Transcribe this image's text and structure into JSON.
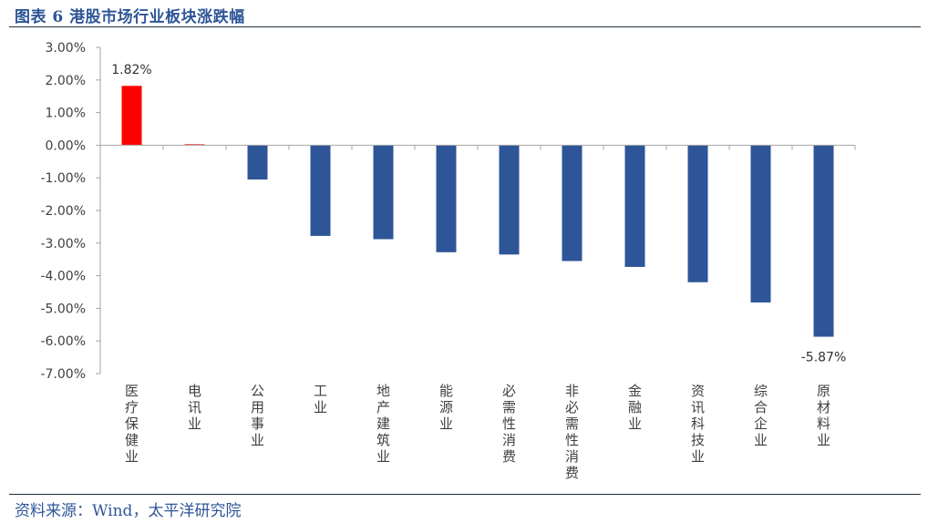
{
  "header": {
    "figure_title": "图表 6  港股市场行业板块涨跌幅"
  },
  "footer": {
    "source": "资料来源：Wind，太平洋研究院"
  },
  "chart_data": {
    "type": "bar",
    "categories": [
      "医疗保健业",
      "电讯业",
      "公用事业",
      "工业",
      "地产建筑业",
      "能源业",
      "必需性消费",
      "非必需性消费",
      "金融业",
      "资讯科技业",
      "综合企业",
      "原材料业"
    ],
    "values": [
      1.82,
      0.03,
      -1.05,
      -2.78,
      -2.88,
      -3.28,
      -3.35,
      -3.55,
      -3.73,
      -4.2,
      -4.82,
      -5.87
    ],
    "data_labels": [
      {
        "index": 0,
        "text": "1.82%"
      },
      {
        "index": 11,
        "text": "-5.87%"
      }
    ],
    "ylim": [
      -7,
      3
    ],
    "y_ticks": [
      3,
      2,
      1,
      0,
      -1,
      -2,
      -3,
      -4,
      -5,
      -6,
      -7
    ],
    "y_tick_labels": [
      "3.00%",
      "2.00%",
      "1.00%",
      "0.00%",
      "-1.00%",
      "-2.00%",
      "-3.00%",
      "-4.00%",
      "-5.00%",
      "-6.00%",
      "-7.00%"
    ],
    "legend": "none",
    "grid": false,
    "colors": {
      "positive": "#ff0000",
      "negative": "#2e5597",
      "axis": "#a6a6a6"
    }
  }
}
